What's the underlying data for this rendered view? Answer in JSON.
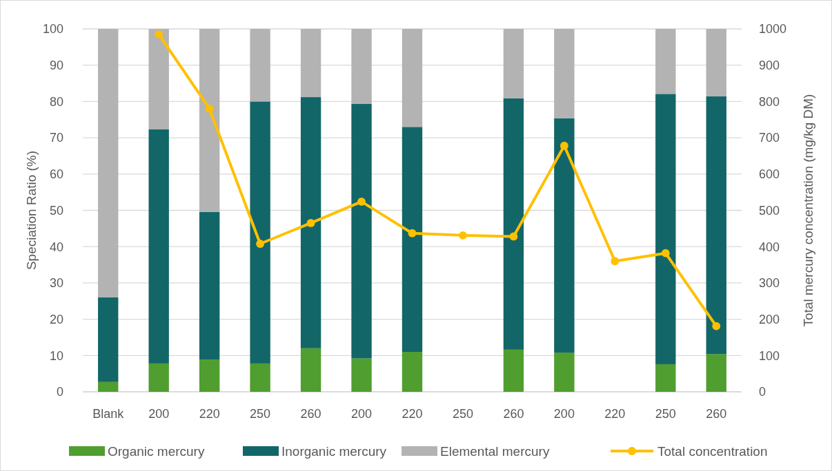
{
  "chart_data": {
    "type": "bar",
    "stacked": true,
    "categories": [
      "Blank",
      "200",
      "220",
      "250",
      "260",
      "200",
      "220",
      "250",
      "260",
      "200",
      "220",
      "250",
      "260"
    ],
    "series": [
      {
        "name": "Organic mercury",
        "color": "#509e2f",
        "values": [
          2.7,
          7.8,
          8.9,
          7.8,
          12,
          9.2,
          11,
          null,
          11.6,
          10.8,
          null,
          7.6,
          10.4
        ]
      },
      {
        "name": "Inorganic mercury",
        "color": "#136668",
        "values": [
          23.3,
          64.5,
          40.7,
          72.2,
          69.2,
          70.2,
          62,
          null,
          69.3,
          64.6,
          null,
          74.5,
          71.0
        ]
      },
      {
        "name": "Elemental mercury",
        "color": "#b3b3b3",
        "values": [
          74,
          27.7,
          50.4,
          20,
          18.8,
          20.6,
          27,
          null,
          19.1,
          24.6,
          null,
          17.9,
          18.6
        ]
      },
      {
        "name": "Total concentration",
        "type": "line",
        "axis": "y2",
        "color": "#ffc000",
        "marker": "circle",
        "values": [
          null,
          985,
          780,
          408,
          465,
          524,
          437,
          431,
          428,
          678,
          360,
          382,
          181
        ]
      }
    ],
    "ylabel": "Speciation Ratio (%)",
    "y2label": "Total mercury concentration (mg/kg DM)",
    "ylim": [
      0,
      100
    ],
    "yticks": [
      0,
      10,
      20,
      30,
      40,
      50,
      60,
      70,
      80,
      90,
      100
    ],
    "y2lim": [
      0,
      1000
    ],
    "y2ticks": [
      0,
      100,
      200,
      300,
      400,
      500,
      600,
      700,
      800,
      900,
      1000
    ],
    "grid": "y",
    "legend": "bottom"
  }
}
